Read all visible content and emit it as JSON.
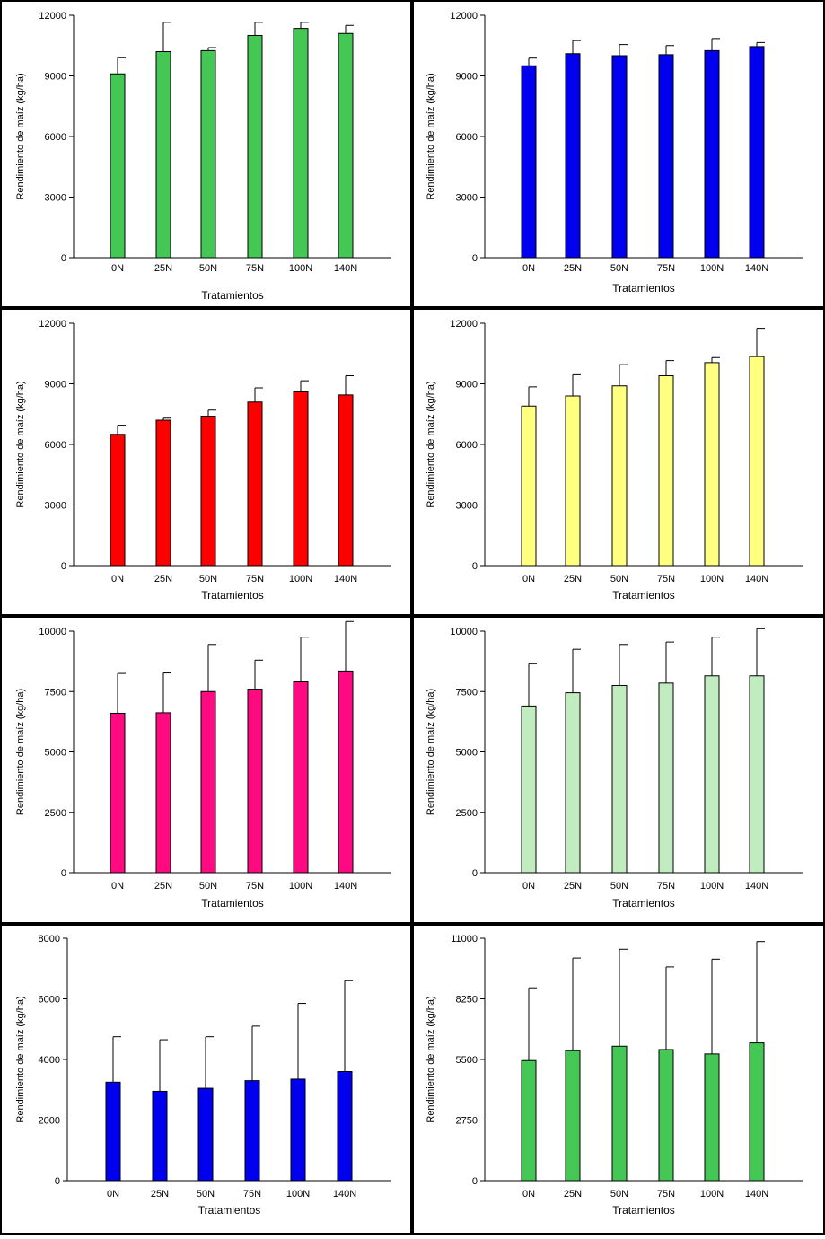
{
  "figure": {
    "ylabel": "Rendimiento de maíz (kg/ha)",
    "xlabel": "Tratamientos",
    "categories": [
      "0N",
      "25N",
      "50N",
      "75N",
      "100N",
      "140N"
    ]
  },
  "chart_data": [
    {
      "type": "bar",
      "title": "",
      "xlabel": "Tratamientos",
      "ylabel": "Rendimiento de maíz (kg/ha)",
      "categories": [
        "0N",
        "25N",
        "50N",
        "75N",
        "100N",
        "140N"
      ],
      "values": [
        9100,
        10200,
        10250,
        11000,
        11350,
        11100
      ],
      "errors": [
        800,
        1450,
        150,
        650,
        300,
        400
      ],
      "ylim": [
        0,
        12000
      ],
      "yticks": [
        0,
        3000,
        6000,
        9000,
        12000
      ],
      "color": "#44c755"
    },
    {
      "type": "bar",
      "title": "",
      "xlabel": "Tratamientos",
      "ylabel": "Rendimiento de maíz (kg/ha)",
      "categories": [
        "0N",
        "25N",
        "50N",
        "75N",
        "100N",
        "140N"
      ],
      "values": [
        9500,
        10100,
        10000,
        10050,
        10250,
        10450
      ],
      "errors": [
        380,
        650,
        550,
        450,
        600,
        200
      ],
      "ylim": [
        0,
        12000
      ],
      "yticks": [
        0,
        3000,
        6000,
        9000,
        12000
      ],
      "color": "#0000ee"
    },
    {
      "type": "bar",
      "title": "",
      "xlabel": "Tratamientos",
      "ylabel": "Rendimiento de maíz (kg/ha)",
      "categories": [
        "0N",
        "25N",
        "50N",
        "75N",
        "100N",
        "140N"
      ],
      "values": [
        6500,
        7200,
        7400,
        8100,
        8600,
        8450
      ],
      "errors": [
        450,
        100,
        300,
        700,
        550,
        950
      ],
      "ylim": [
        0,
        12000
      ],
      "yticks": [
        0,
        3000,
        6000,
        9000,
        12000
      ],
      "color": "#ff0000"
    },
    {
      "type": "bar",
      "title": "",
      "xlabel": "Tratamientos",
      "ylabel": "Rendimiento de maíz (kg/ha)",
      "categories": [
        "0N",
        "25N",
        "50N",
        "75N",
        "100N",
        "140N"
      ],
      "values": [
        7900,
        8400,
        8900,
        9400,
        10050,
        10350
      ],
      "errors": [
        950,
        1050,
        1050,
        750,
        250,
        1400
      ],
      "ylim": [
        0,
        12000
      ],
      "yticks": [
        0,
        3000,
        6000,
        9000,
        12000
      ],
      "color": "#ffff80"
    },
    {
      "type": "bar",
      "title": "",
      "xlabel": "Tratamientos",
      "ylabel": "Rendimiento de maíz (kg/ha)",
      "categories": [
        "0N",
        "25N",
        "50N",
        "75N",
        "100N",
        "140N"
      ],
      "values": [
        6600,
        6620,
        7500,
        7600,
        7900,
        8350
      ],
      "errors": [
        1650,
        1650,
        1950,
        1200,
        1850,
        2050
      ],
      "ylim": [
        0,
        10000
      ],
      "yticks": [
        0,
        2500,
        5000,
        7500,
        10000
      ],
      "color": "#ff0a80"
    },
    {
      "type": "bar",
      "title": "",
      "xlabel": "Tratamientos",
      "ylabel": "Rendimiento de maíz (kg/ha)",
      "categories": [
        "0N",
        "25N",
        "50N",
        "75N",
        "100N",
        "140N"
      ],
      "values": [
        6900,
        7450,
        7750,
        7850,
        8150,
        8150
      ],
      "errors": [
        1750,
        1800,
        1700,
        1700,
        1600,
        1950
      ],
      "ylim": [
        0,
        10000
      ],
      "yticks": [
        0,
        2500,
        5000,
        7500,
        10000
      ],
      "color": "#c0ecc0"
    },
    {
      "type": "bar",
      "title": "",
      "xlabel": "Tratamientos",
      "ylabel": "Rendimiento de maíz (kg/ha)",
      "categories": [
        "0N",
        "25N",
        "50N",
        "75N",
        "100N",
        "140N"
      ],
      "values": [
        3250,
        2950,
        3050,
        3300,
        3350,
        3600
      ],
      "errors": [
        1500,
        1700,
        1700,
        1800,
        2500,
        3000
      ],
      "ylim": [
        0,
        8000
      ],
      "yticks": [
        0,
        2000,
        4000,
        6000,
        8000
      ],
      "color": "#0000ee"
    },
    {
      "type": "bar",
      "title": "",
      "xlabel": "Tratamientos",
      "ylabel": "Rendimiento de maíz (kg/ha)",
      "categories": [
        "0N",
        "25N",
        "50N",
        "75N",
        "100N",
        "140N"
      ],
      "values": [
        5450,
        5900,
        6100,
        5950,
        5750,
        6250
      ],
      "errors": [
        3300,
        4200,
        4400,
        3750,
        4300,
        4600
      ],
      "ylim": [
        0,
        11000
      ],
      "yticks": [
        0,
        2750,
        5500,
        8250,
        11000
      ],
      "color": "#44c755"
    }
  ]
}
